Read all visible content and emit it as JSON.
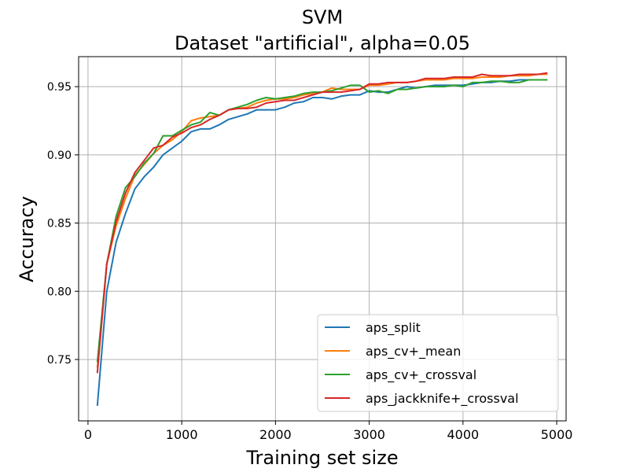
{
  "chart_data": {
    "type": "line",
    "title_line1": "SVM",
    "title_line2": "Dataset \"artificial\", alpha=0.05",
    "xlabel": "Training set size",
    "ylabel": "Accuracy",
    "xlim": [
      -100,
      5100
    ],
    "ylim": [
      0.705,
      0.972
    ],
    "xticks": [
      0,
      1000,
      2000,
      3000,
      4000,
      5000
    ],
    "yticks": [
      0.75,
      0.8,
      0.85,
      0.9,
      0.95
    ],
    "ytick_labels": [
      "0.75",
      "0.80",
      "0.85",
      "0.90",
      "0.95"
    ],
    "grid": true,
    "legend_position": "lower right",
    "x": [
      100,
      200,
      300,
      400,
      500,
      600,
      700,
      800,
      900,
      1000,
      1100,
      1200,
      1300,
      1400,
      1500,
      1600,
      1700,
      1800,
      1900,
      2000,
      2100,
      2200,
      2300,
      2400,
      2500,
      2600,
      2700,
      2800,
      2900,
      3000,
      3100,
      3200,
      3300,
      3400,
      3500,
      3600,
      3700,
      3800,
      3900,
      4000,
      4100,
      4200,
      4300,
      4400,
      4500,
      4600,
      4700,
      4800,
      4900
    ],
    "series": [
      {
        "name": "aps_split",
        "color": "#1f77b4",
        "values": [
          0.716,
          0.8,
          0.836,
          0.857,
          0.875,
          0.884,
          0.891,
          0.9,
          0.905,
          0.91,
          0.917,
          0.919,
          0.919,
          0.922,
          0.926,
          0.928,
          0.93,
          0.933,
          0.933,
          0.933,
          0.935,
          0.938,
          0.939,
          0.942,
          0.942,
          0.941,
          0.943,
          0.944,
          0.944,
          0.947,
          0.946,
          0.946,
          0.948,
          0.95,
          0.949,
          0.95,
          0.951,
          0.951,
          0.951,
          0.951,
          0.952,
          0.953,
          0.953,
          0.954,
          0.954,
          0.955,
          0.955,
          0.955,
          0.955
        ]
      },
      {
        "name": "aps_cv+_mean",
        "color": "#ff7f0e",
        "values": [
          0.744,
          0.82,
          0.848,
          0.868,
          0.885,
          0.893,
          0.901,
          0.907,
          0.911,
          0.917,
          0.925,
          0.927,
          0.928,
          0.929,
          0.933,
          0.934,
          0.935,
          0.938,
          0.94,
          0.941,
          0.941,
          0.942,
          0.944,
          0.945,
          0.946,
          0.949,
          0.948,
          0.948,
          0.948,
          0.951,
          0.951,
          0.952,
          0.953,
          0.953,
          0.954,
          0.955,
          0.955,
          0.955,
          0.956,
          0.956,
          0.956,
          0.957,
          0.957,
          0.957,
          0.958,
          0.958,
          0.958,
          0.959,
          0.959
        ]
      },
      {
        "name": "aps_cv+_crossval",
        "color": "#2ca02c",
        "values": [
          0.748,
          0.82,
          0.855,
          0.876,
          0.884,
          0.894,
          0.901,
          0.914,
          0.914,
          0.918,
          0.922,
          0.924,
          0.931,
          0.929,
          0.933,
          0.935,
          0.937,
          0.94,
          0.942,
          0.941,
          0.942,
          0.943,
          0.945,
          0.946,
          0.946,
          0.947,
          0.949,
          0.951,
          0.951,
          0.946,
          0.947,
          0.945,
          0.948,
          0.948,
          0.949,
          0.95,
          0.95,
          0.95,
          0.951,
          0.95,
          0.953,
          0.953,
          0.954,
          0.954,
          0.953,
          0.953,
          0.955,
          0.955,
          0.955
        ]
      },
      {
        "name": "aps_jackknife+_crossval",
        "color": "#d62728",
        "values": [
          0.74,
          0.82,
          0.851,
          0.872,
          0.887,
          0.896,
          0.905,
          0.907,
          0.913,
          0.916,
          0.92,
          0.922,
          0.926,
          0.929,
          0.933,
          0.934,
          0.934,
          0.935,
          0.938,
          0.939,
          0.94,
          0.94,
          0.942,
          0.944,
          0.946,
          0.946,
          0.946,
          0.947,
          0.948,
          0.952,
          0.952,
          0.953,
          0.953,
          0.953,
          0.954,
          0.956,
          0.956,
          0.956,
          0.957,
          0.957,
          0.957,
          0.959,
          0.958,
          0.958,
          0.958,
          0.959,
          0.959,
          0.959,
          0.96
        ]
      }
    ]
  }
}
